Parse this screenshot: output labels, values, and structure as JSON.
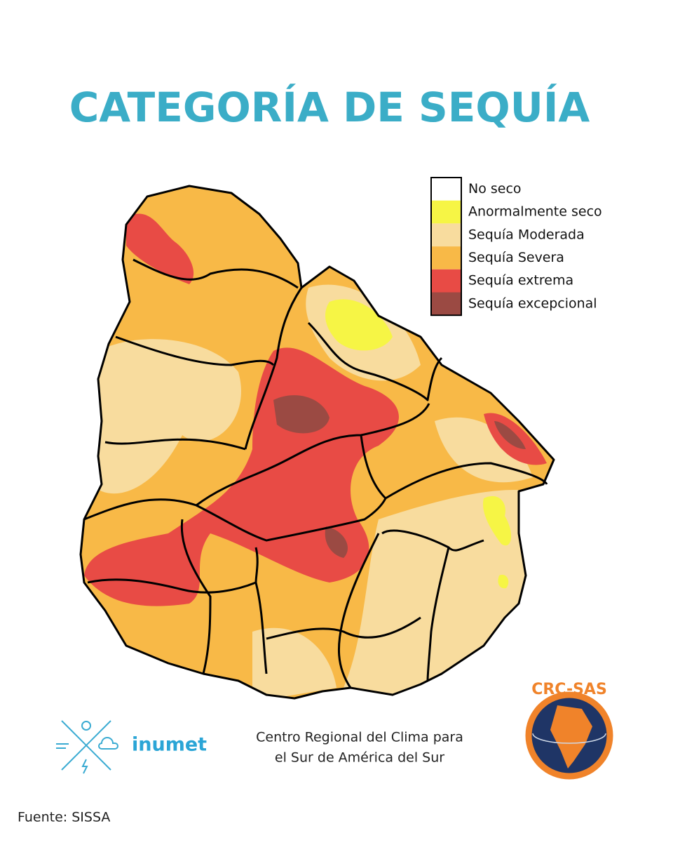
{
  "title": "CATEGORÍA DE SEQUÍA",
  "legend": [
    {
      "label": "No seco",
      "color": "#ffffff"
    },
    {
      "label": "Anormalmente seco",
      "color": "#f6f545"
    },
    {
      "label": "Sequía Moderada",
      "color": "#f8dc9e"
    },
    {
      "label": "Sequía Severa",
      "color": "#f8b947"
    },
    {
      "label": "Sequía extrema",
      "color": "#e84b45"
    },
    {
      "label": "Sequía excepcional",
      "color": "#9b4a43"
    }
  ],
  "footer": {
    "agency": "inumet",
    "center_lines": [
      "Centro Regional del Clima para",
      "el Sur de América del Sur"
    ],
    "logo": "CRC-SAS",
    "source": "Fuente: SISSA"
  }
}
